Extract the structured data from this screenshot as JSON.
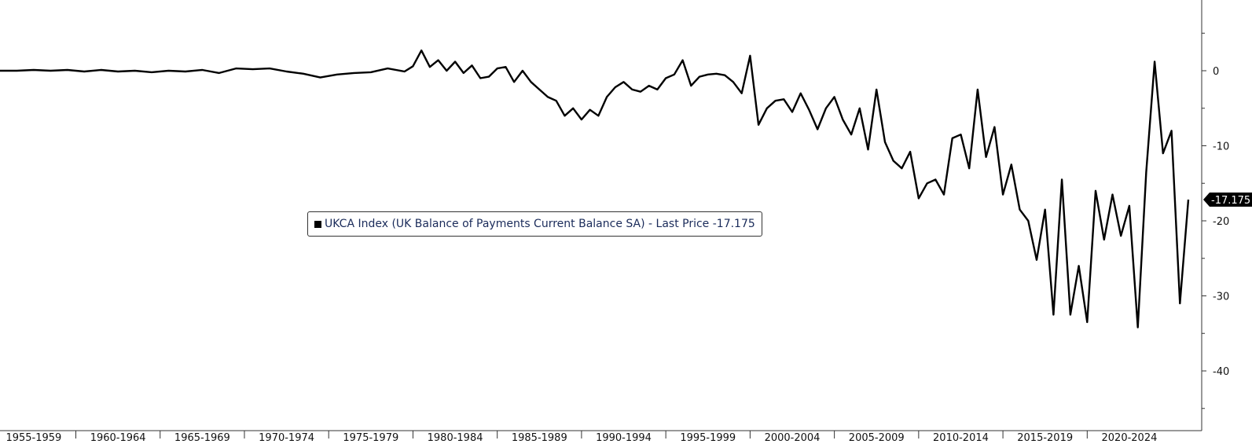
{
  "chart_data": {
    "type": "line",
    "title": "",
    "xlabel": "",
    "ylabel": "",
    "x_tick_labels": [
      "1955-1959",
      "1960-1964",
      "1965-1969",
      "1970-1974",
      "1975-1979",
      "1980-1984",
      "1985-1989",
      "1990-1994",
      "1995-1999",
      "2000-2004",
      "2005-2009",
      "2010-2014",
      "2015-2019",
      "2020-2024"
    ],
    "y_ticks": [
      0,
      -10,
      -20,
      -30,
      -40
    ],
    "ylim": [
      -47,
      10
    ],
    "xlim": [
      1955.0,
      2025.5
    ],
    "grid": false,
    "legend_placement": "center",
    "series": [
      {
        "name": "UKCA Index (UK Balance of Payments Current Balance SA) - Last Price -17.175",
        "color": "#000000",
        "last_value_label": "-17.175",
        "points": [
          [
            1955.0,
            0.0
          ],
          [
            1956.0,
            0.0
          ],
          [
            1957.0,
            0.1
          ],
          [
            1958.0,
            0.0
          ],
          [
            1959.0,
            0.1
          ],
          [
            1960.0,
            -0.1
          ],
          [
            1961.0,
            0.1
          ],
          [
            1962.0,
            -0.1
          ],
          [
            1963.0,
            0.0
          ],
          [
            1964.0,
            -0.2
          ],
          [
            1965.0,
            0.0
          ],
          [
            1966.0,
            -0.1
          ],
          [
            1967.0,
            0.1
          ],
          [
            1968.0,
            -0.3
          ],
          [
            1969.0,
            0.3
          ],
          [
            1970.0,
            0.2
          ],
          [
            1971.0,
            0.3
          ],
          [
            1972.0,
            -0.1
          ],
          [
            1973.0,
            -0.4
          ],
          [
            1974.0,
            -0.9
          ],
          [
            1975.0,
            -0.5
          ],
          [
            1976.0,
            -0.3
          ],
          [
            1977.0,
            -0.2
          ],
          [
            1978.0,
            0.3
          ],
          [
            1979.0,
            -0.1
          ],
          [
            1979.5,
            0.6
          ],
          [
            1980.0,
            2.7
          ],
          [
            1980.5,
            0.5
          ],
          [
            1981.0,
            1.4
          ],
          [
            1981.5,
            0.0
          ],
          [
            1982.0,
            1.2
          ],
          [
            1982.5,
            -0.3
          ],
          [
            1983.0,
            0.7
          ],
          [
            1983.5,
            -1.0
          ],
          [
            1984.0,
            -0.8
          ],
          [
            1984.5,
            0.3
          ],
          [
            1985.0,
            0.5
          ],
          [
            1985.5,
            -1.5
          ],
          [
            1986.0,
            0.0
          ],
          [
            1986.5,
            -1.5
          ],
          [
            1987.0,
            -2.5
          ],
          [
            1987.5,
            -3.5
          ],
          [
            1988.0,
            -4.0
          ],
          [
            1988.5,
            -6.0
          ],
          [
            1989.0,
            -5.0
          ],
          [
            1989.5,
            -6.5
          ],
          [
            1990.0,
            -5.2
          ],
          [
            1990.5,
            -6.0
          ],
          [
            1991.0,
            -3.5
          ],
          [
            1991.5,
            -2.2
          ],
          [
            1992.0,
            -1.5
          ],
          [
            1992.5,
            -2.5
          ],
          [
            1993.0,
            -2.8
          ],
          [
            1993.5,
            -2.0
          ],
          [
            1994.0,
            -2.5
          ],
          [
            1994.5,
            -1.0
          ],
          [
            1995.0,
            -0.5
          ],
          [
            1995.5,
            1.4
          ],
          [
            1996.0,
            -2.0
          ],
          [
            1996.5,
            -0.8
          ],
          [
            1997.0,
            -0.5
          ],
          [
            1997.5,
            -0.4
          ],
          [
            1998.0,
            -0.6
          ],
          [
            1998.5,
            -1.5
          ],
          [
            1999.0,
            -3.0
          ],
          [
            1999.5,
            2.0
          ],
          [
            2000.0,
            -7.2
          ],
          [
            2000.5,
            -5.0
          ],
          [
            2001.0,
            -4.0
          ],
          [
            2001.5,
            -3.8
          ],
          [
            2002.0,
            -5.5
          ],
          [
            2002.5,
            -3.0
          ],
          [
            2003.0,
            -5.2
          ],
          [
            2003.5,
            -7.8
          ],
          [
            2004.0,
            -5.0
          ],
          [
            2004.5,
            -3.5
          ],
          [
            2005.0,
            -6.5
          ],
          [
            2005.5,
            -8.5
          ],
          [
            2006.0,
            -5.0
          ],
          [
            2006.5,
            -10.5
          ],
          [
            2007.0,
            -2.5
          ],
          [
            2007.5,
            -9.5
          ],
          [
            2008.0,
            -12.0
          ],
          [
            2008.5,
            -13.0
          ],
          [
            2009.0,
            -10.8
          ],
          [
            2009.5,
            -17.0
          ],
          [
            2010.0,
            -15.0
          ],
          [
            2010.5,
            -14.5
          ],
          [
            2011.0,
            -16.5
          ],
          [
            2011.5,
            -9.0
          ],
          [
            2012.0,
            -8.5
          ],
          [
            2012.5,
            -13.0
          ],
          [
            2013.0,
            -2.5
          ],
          [
            2013.5,
            -11.5
          ],
          [
            2014.0,
            -7.5
          ],
          [
            2014.5,
            -16.5
          ],
          [
            2015.0,
            -12.5
          ],
          [
            2015.5,
            -18.5
          ],
          [
            2016.0,
            -20.0
          ],
          [
            2016.5,
            -25.2
          ],
          [
            2017.0,
            -18.5
          ],
          [
            2017.5,
            -32.5
          ],
          [
            2018.0,
            -14.5
          ],
          [
            2018.5,
            -32.5
          ],
          [
            2019.0,
            -26.0
          ],
          [
            2019.5,
            -33.5
          ],
          [
            2020.0,
            -16.0
          ],
          [
            2020.5,
            -22.5
          ],
          [
            2021.0,
            -16.5
          ],
          [
            2021.5,
            -22.0
          ],
          [
            2022.0,
            -18.0
          ],
          [
            2022.5,
            -34.2
          ],
          [
            2023.0,
            -13.5
          ],
          [
            2023.5,
            1.2
          ],
          [
            2024.0,
            -11.0
          ],
          [
            2024.5,
            -8.0
          ],
          [
            2025.0,
            -31.0
          ],
          [
            2025.5,
            -17.175
          ]
        ]
      }
    ]
  }
}
